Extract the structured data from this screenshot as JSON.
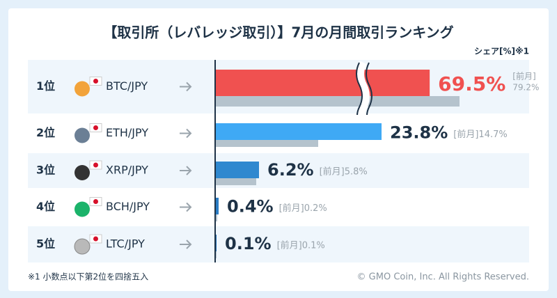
{
  "chart_data": {
    "type": "bar",
    "title": "【取引所（レバレッジ取引）】7月の月間取引ランキング",
    "unit_label": "シェア[%]※1",
    "ranks": [
      "1位",
      "2位",
      "3位",
      "4位",
      "5位"
    ],
    "categories": [
      "BTC/JPY",
      "ETH/JPY",
      "XRP/JPY",
      "BCH/JPY",
      "LTC/JPY"
    ],
    "series": [
      {
        "colors": [
          "#f05150",
          "#3fa9f5",
          "#2f88cf",
          "#2a7cc4",
          "#1f6db0"
        ],
        "values": [
          69.5,
          23.8,
          6.2,
          0.4,
          0.1
        ],
        "value_labels": [
          "69.5%",
          "23.8%",
          "6.2%",
          "0.4%",
          "0.1%"
        ]
      },
      {
        "name": "[前月]",
        "color": "#b5c3cd",
        "values": [
          79.2,
          14.7,
          5.8,
          0.2,
          0.1
        ],
        "value_labels": [
          "79.2%",
          "14.7%",
          "5.8%",
          "0.2%",
          "0.1%"
        ]
      }
    ],
    "footnote": "※1 小数点以下第2位を四捨五入",
    "copyright": "© GMO Coin, Inc. All Rights Reserved."
  }
}
